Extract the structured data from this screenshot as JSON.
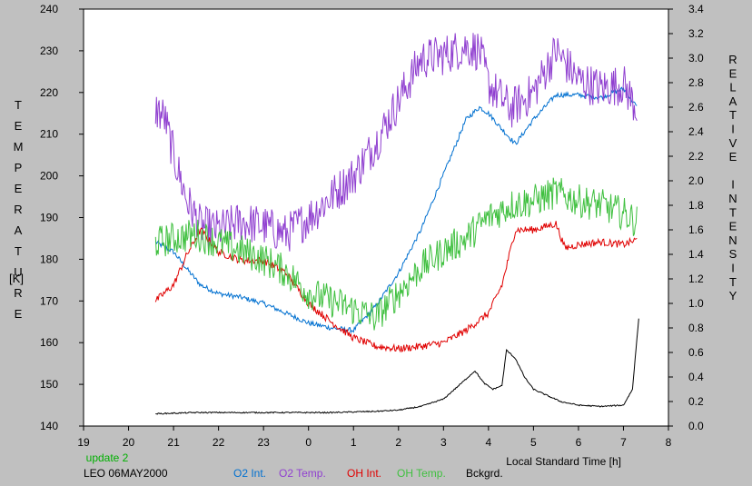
{
  "chart_data": {
    "type": "line",
    "y_left_label": "TEMPERATURE",
    "y_left_unit": "[K]",
    "y_right_label": "RELATIVE INTENSITY",
    "xlabel": "Local Standard Time [h]",
    "xlim": [
      19,
      32
    ],
    "x_tick_labels": [
      "19",
      "20",
      "21",
      "22",
      "23",
      "0",
      "1",
      "2",
      "3",
      "4",
      "5",
      "6",
      "7",
      "8"
    ],
    "y_left_lim": [
      140,
      240
    ],
    "y_left_ticks": [
      "140",
      "150",
      "160",
      "170",
      "180",
      "190",
      "200",
      "210",
      "220",
      "230",
      "240"
    ],
    "y_right_lim": [
      0.0,
      3.4
    ],
    "y_right_ticks": [
      "0.0",
      "0.2",
      "0.4",
      "0.6",
      "0.8",
      "1.0",
      "1.2",
      "1.4",
      "1.6",
      "1.8",
      "2.0",
      "2.2",
      "2.4",
      "2.6",
      "2.8",
      "3.0",
      "3.2",
      "3.4"
    ],
    "update_note": "update 2",
    "site_date": "LEO 06MAY2000",
    "grid": false,
    "legend_position": "bottom",
    "series": [
      {
        "name": "O2 Int.",
        "axis": "right",
        "color": "#0070d0",
        "noise": 0.02,
        "points": [
          [
            20.6,
            1.5
          ],
          [
            21.0,
            1.42
          ],
          [
            21.3,
            1.28
          ],
          [
            21.6,
            1.15
          ],
          [
            22.0,
            1.08
          ],
          [
            22.5,
            1.05
          ],
          [
            23.0,
            1.0
          ],
          [
            23.5,
            0.92
          ],
          [
            24.0,
            0.84
          ],
          [
            24.5,
            0.8
          ],
          [
            25.0,
            0.78
          ],
          [
            25.5,
            0.98
          ],
          [
            26.0,
            1.25
          ],
          [
            26.5,
            1.6
          ],
          [
            27.0,
            2.05
          ],
          [
            27.5,
            2.5
          ],
          [
            27.8,
            2.6
          ],
          [
            28.0,
            2.55
          ],
          [
            28.3,
            2.42
          ],
          [
            28.6,
            2.3
          ],
          [
            29.0,
            2.5
          ],
          [
            29.5,
            2.7
          ],
          [
            30.0,
            2.7
          ],
          [
            30.5,
            2.68
          ],
          [
            31.0,
            2.75
          ],
          [
            31.3,
            2.6
          ]
        ]
      },
      {
        "name": "O2 Temp.",
        "axis": "left",
        "color": "#9040d0",
        "noise": 5,
        "points": [
          [
            20.6,
            216
          ],
          [
            20.8,
            214
          ],
          [
            21.0,
            205
          ],
          [
            21.3,
            194
          ],
          [
            21.6,
            188
          ],
          [
            22.0,
            187
          ],
          [
            22.5,
            189
          ],
          [
            23.0,
            188
          ],
          [
            23.5,
            186
          ],
          [
            24.0,
            190
          ],
          [
            24.5,
            195
          ],
          [
            25.0,
            200
          ],
          [
            25.5,
            208
          ],
          [
            26.0,
            218
          ],
          [
            26.5,
            228
          ],
          [
            27.0,
            229
          ],
          [
            27.5,
            231
          ],
          [
            27.8,
            230
          ],
          [
            28.0,
            222
          ],
          [
            28.5,
            216
          ],
          [
            29.0,
            220
          ],
          [
            29.5,
            230
          ],
          [
            30.0,
            223
          ],
          [
            30.5,
            221
          ],
          [
            31.0,
            222
          ],
          [
            31.3,
            216
          ]
        ]
      },
      {
        "name": "OH Int.",
        "axis": "right",
        "color": "#e00000",
        "noise": 0.03,
        "points": [
          [
            20.6,
            1.02
          ],
          [
            21.0,
            1.15
          ],
          [
            21.3,
            1.4
          ],
          [
            21.6,
            1.6
          ],
          [
            22.0,
            1.42
          ],
          [
            22.5,
            1.35
          ],
          [
            23.0,
            1.35
          ],
          [
            23.5,
            1.25
          ],
          [
            24.0,
            1.0
          ],
          [
            24.5,
            0.85
          ],
          [
            25.0,
            0.72
          ],
          [
            25.5,
            0.65
          ],
          [
            26.0,
            0.63
          ],
          [
            26.5,
            0.65
          ],
          [
            27.0,
            0.68
          ],
          [
            27.5,
            0.78
          ],
          [
            28.0,
            0.92
          ],
          [
            28.3,
            1.15
          ],
          [
            28.6,
            1.6
          ],
          [
            29.0,
            1.6
          ],
          [
            29.5,
            1.65
          ],
          [
            29.7,
            1.45
          ],
          [
            30.0,
            1.48
          ],
          [
            30.5,
            1.5
          ],
          [
            31.0,
            1.48
          ],
          [
            31.3,
            1.52
          ]
        ]
      },
      {
        "name": "OH Temp.",
        "axis": "left",
        "color": "#40c040",
        "noise": 4,
        "points": [
          [
            20.6,
            184
          ],
          [
            21.0,
            185
          ],
          [
            21.5,
            186
          ],
          [
            22.0,
            184
          ],
          [
            22.5,
            182
          ],
          [
            23.0,
            180
          ],
          [
            23.5,
            177
          ],
          [
            24.0,
            172
          ],
          [
            24.5,
            170
          ],
          [
            25.0,
            168
          ],
          [
            25.5,
            166
          ],
          [
            26.0,
            172
          ],
          [
            26.5,
            178
          ],
          [
            27.0,
            182
          ],
          [
            27.5,
            185
          ],
          [
            28.0,
            190
          ],
          [
            28.5,
            193
          ],
          [
            29.0,
            194
          ],
          [
            29.5,
            196
          ],
          [
            30.0,
            194
          ],
          [
            30.5,
            193
          ],
          [
            31.0,
            191
          ],
          [
            31.3,
            189
          ]
        ]
      },
      {
        "name": "Bckgrd.",
        "axis": "right",
        "color": "#000000",
        "noise": 0.005,
        "points": [
          [
            20.6,
            0.1
          ],
          [
            21.5,
            0.11
          ],
          [
            22.5,
            0.11
          ],
          [
            23.5,
            0.11
          ],
          [
            24.5,
            0.11
          ],
          [
            25.5,
            0.12
          ],
          [
            26.0,
            0.13
          ],
          [
            26.5,
            0.16
          ],
          [
            27.0,
            0.22
          ],
          [
            27.4,
            0.35
          ],
          [
            27.7,
            0.45
          ],
          [
            27.9,
            0.35
          ],
          [
            28.1,
            0.3
          ],
          [
            28.3,
            0.33
          ],
          [
            28.4,
            0.62
          ],
          [
            28.6,
            0.55
          ],
          [
            28.8,
            0.4
          ],
          [
            29.0,
            0.3
          ],
          [
            29.3,
            0.25
          ],
          [
            29.6,
            0.2
          ],
          [
            30.0,
            0.17
          ],
          [
            30.5,
            0.16
          ],
          [
            31.0,
            0.17
          ],
          [
            31.2,
            0.3
          ],
          [
            31.35,
            0.92
          ]
        ]
      }
    ]
  }
}
